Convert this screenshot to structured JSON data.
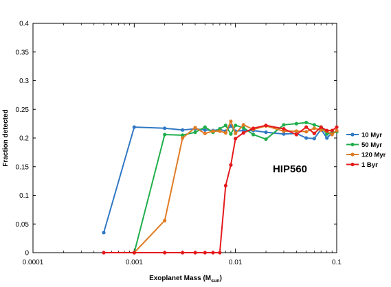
{
  "chart_data": {
    "type": "line",
    "title": "",
    "annotation": "HIP560",
    "xlabel_main": "Exoplanet Mass (M",
    "xlabel_sub": "sun",
    "xlabel_close": ")",
    "ylabel": "Fraction detected",
    "x_scale": "log",
    "xlim": [
      0.0001,
      0.1
    ],
    "ylim": [
      0,
      0.4
    ],
    "x_ticks": [
      {
        "value": 0.0001,
        "label": "0.0001"
      },
      {
        "value": 0.001,
        "label": "0.001"
      },
      {
        "value": 0.01,
        "label": "0.01"
      },
      {
        "value": 0.1,
        "label": "0.1"
      }
    ],
    "y_ticks": [
      {
        "value": 0,
        "label": "0"
      },
      {
        "value": 0.05,
        "label": "0.05"
      },
      {
        "value": 0.1,
        "label": "0.1"
      },
      {
        "value": 0.15,
        "label": "0.15"
      },
      {
        "value": 0.2,
        "label": "0.2"
      },
      {
        "value": 0.25,
        "label": "0.25"
      },
      {
        "value": 0.3,
        "label": "0.3"
      },
      {
        "value": 0.35,
        "label": "0.35"
      },
      {
        "value": 0.4,
        "label": "0.4"
      }
    ],
    "grid": false,
    "legend_position": "right",
    "series": [
      {
        "name": "10 Myr",
        "color": "#2f78c4",
        "points": [
          [
            0.0005,
            0.035
          ],
          [
            0.001,
            0.219
          ],
          [
            0.002,
            0.217
          ],
          [
            0.003,
            0.214
          ],
          [
            0.004,
            0.216
          ],
          [
            0.005,
            0.214
          ],
          [
            0.006,
            0.213
          ],
          [
            0.007,
            0.215
          ],
          [
            0.008,
            0.212
          ],
          [
            0.009,
            0.221
          ],
          [
            0.01,
            0.212
          ],
          [
            0.012,
            0.213
          ],
          [
            0.015,
            0.213
          ],
          [
            0.02,
            0.21
          ],
          [
            0.03,
            0.207
          ],
          [
            0.04,
            0.208
          ],
          [
            0.05,
            0.2
          ],
          [
            0.06,
            0.199
          ],
          [
            0.07,
            0.215
          ],
          [
            0.08,
            0.2
          ],
          [
            0.09,
            0.209
          ],
          [
            0.1,
            0.211
          ]
        ]
      },
      {
        "name": "50 Myr",
        "color": "#1fae4b",
        "points": [
          [
            0.001,
            0.0
          ],
          [
            0.002,
            0.206
          ],
          [
            0.003,
            0.205
          ],
          [
            0.004,
            0.21
          ],
          [
            0.005,
            0.219
          ],
          [
            0.006,
            0.21
          ],
          [
            0.007,
            0.216
          ],
          [
            0.008,
            0.222
          ],
          [
            0.009,
            0.207
          ],
          [
            0.01,
            0.222
          ],
          [
            0.012,
            0.218
          ],
          [
            0.015,
            0.206
          ],
          [
            0.02,
            0.198
          ],
          [
            0.03,
            0.223
          ],
          [
            0.04,
            0.225
          ],
          [
            0.05,
            0.227
          ],
          [
            0.06,
            0.223
          ],
          [
            0.07,
            0.219
          ],
          [
            0.08,
            0.207
          ],
          [
            0.09,
            0.21
          ],
          [
            0.1,
            0.211
          ]
        ]
      },
      {
        "name": "120 Myr",
        "color": "#e07b24",
        "points": [
          [
            0.001,
            0.0
          ],
          [
            0.002,
            0.056
          ],
          [
            0.003,
            0.2
          ],
          [
            0.004,
            0.218
          ],
          [
            0.005,
            0.208
          ],
          [
            0.006,
            0.212
          ],
          [
            0.007,
            0.212
          ],
          [
            0.008,
            0.209
          ],
          [
            0.009,
            0.229
          ],
          [
            0.01,
            0.208
          ],
          [
            0.012,
            0.223
          ],
          [
            0.015,
            0.215
          ],
          [
            0.02,
            0.221
          ],
          [
            0.03,
            0.212
          ],
          [
            0.04,
            0.212
          ],
          [
            0.05,
            0.211
          ],
          [
            0.06,
            0.217
          ],
          [
            0.07,
            0.214
          ],
          [
            0.08,
            0.212
          ],
          [
            0.09,
            0.206
          ],
          [
            0.1,
            0.213
          ]
        ]
      },
      {
        "name": "1 Byr",
        "color": "#e4191c",
        "points": [
          [
            0.0005,
            0.0
          ],
          [
            0.001,
            0.0
          ],
          [
            0.002,
            0.0
          ],
          [
            0.003,
            0.0
          ],
          [
            0.004,
            0.0
          ],
          [
            0.005,
            0.0
          ],
          [
            0.006,
            0.0
          ],
          [
            0.007,
            0.0
          ],
          [
            0.008,
            0.117
          ],
          [
            0.009,
            0.153
          ],
          [
            0.01,
            0.199
          ],
          [
            0.012,
            0.209
          ],
          [
            0.015,
            0.217
          ],
          [
            0.02,
            0.222
          ],
          [
            0.03,
            0.216
          ],
          [
            0.04,
            0.206
          ],
          [
            0.05,
            0.219
          ],
          [
            0.06,
            0.208
          ],
          [
            0.07,
            0.219
          ],
          [
            0.08,
            0.213
          ],
          [
            0.09,
            0.213
          ],
          [
            0.1,
            0.219
          ]
        ]
      }
    ]
  }
}
